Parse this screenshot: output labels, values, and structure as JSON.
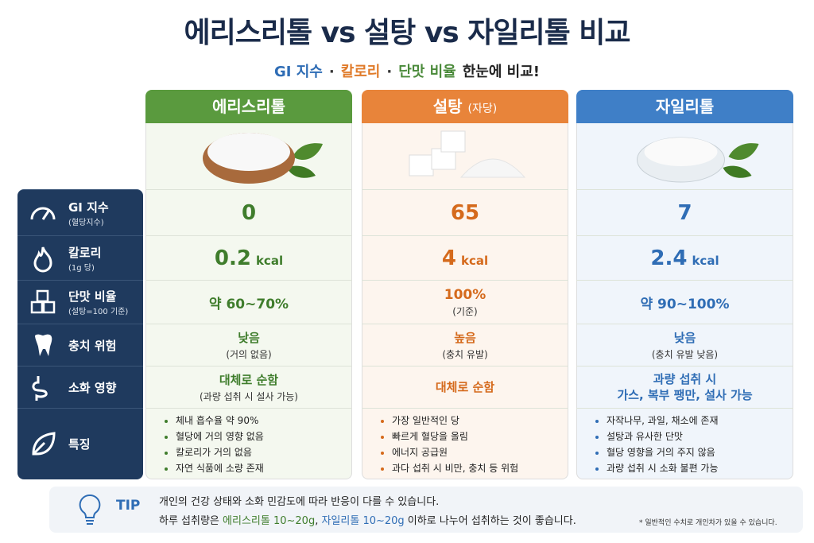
{
  "title": "에리스리톨 vs 설탕 vs 자일리톨 비교",
  "subtitle": [
    {
      "text": "GI 지수",
      "color": "#2f6db5"
    },
    {
      "text": "·",
      "color": "#333"
    },
    {
      "text": "칼로리",
      "color": "#e07b2a"
    },
    {
      "text": "·",
      "color": "#333"
    },
    {
      "text": "단맛 비율",
      "color": "#4a8a3a"
    },
    {
      "text": "한눈에 비교!",
      "color": "#222"
    }
  ],
  "columns": [
    {
      "name": "에리스리톨",
      "color": "#5a9a3e",
      "text": "#3f7d2c",
      "bg": "#f4f8ef"
    },
    {
      "name": "설탕",
      "note": "(자당)",
      "color": "#e8843a",
      "text": "#d56a1c",
      "bg": "#fdf5ee"
    },
    {
      "name": "자일리톨",
      "color": "#3f7fc7",
      "text": "#2f6db5",
      "bg": "#f0f5fb"
    }
  ],
  "rows": [
    {
      "label": "GI 지수",
      "sublabel": "(혈당지수)",
      "style": "big",
      "cells": [
        {
          "value": 0
        },
        {
          "value": 65
        },
        {
          "value": 7
        }
      ]
    },
    {
      "label": "칼로리",
      "sublabel": "(1g 당)",
      "style": "big",
      "cells": [
        {
          "value": 0.2,
          "unit": "kcal"
        },
        {
          "value": 4,
          "unit": "kcal"
        },
        {
          "value": 2.4,
          "unit": "kcal"
        }
      ]
    },
    {
      "label": "단맛 비율",
      "sublabel": "(설탕=100 기준)",
      "style": "mid",
      "cells": [
        {
          "lines": [
            "약 60~70%"
          ]
        },
        {
          "lines": [
            "100%"
          ],
          "sub": "(기준)"
        },
        {
          "lines": [
            "약 90~100%"
          ]
        }
      ]
    },
    {
      "label": "충치 위험",
      "style": "norm",
      "cells": [
        {
          "lines": [
            "낮음"
          ],
          "sub": "(거의 없음)"
        },
        {
          "lines": [
            "높음"
          ],
          "sub": "(충치 유발)"
        },
        {
          "lines": [
            "낮음"
          ],
          "sub": "(충치 유발 낮음)"
        }
      ]
    },
    {
      "label": "소화 영향",
      "style": "norm",
      "cells": [
        {
          "lines": [
            "대체로 순함"
          ],
          "sub": "(과량 섭취 시 설사 가능)"
        },
        {
          "lines": [
            "대체로 순함"
          ]
        },
        {
          "lines": [
            "과량 섭취 시",
            "가스, 복부 팽만, 설사 가능"
          ]
        }
      ]
    },
    {
      "label": "특징",
      "style": "list",
      "cells": [
        {
          "bullets": [
            "체내 흡수율 약 90%",
            "혈당에 거의 영향 없음",
            "칼로리가 거의 없음",
            "자연 식품에 소량 존재"
          ]
        },
        {
          "bullets": [
            "가장 일반적인 당",
            "빠르게 혈당을 올림",
            "에너지 공급원",
            "과다 섭취 시 비만, 충치 등 위험"
          ]
        },
        {
          "bullets": [
            "자작나무, 과일, 채소에 존재",
            "설탕과 유사한 단맛",
            "혈당 영향을 거의 주지 않음",
            "과량 섭취 시 소화 불편 가능"
          ]
        }
      ]
    }
  ],
  "tip": {
    "label": "TIP",
    "line1": "개인의 건강 상태와 소화 민감도에 따라 반응이 다를 수 있습니다.",
    "line2": [
      {
        "text": "하루 섭취량은 ",
        "color": "#222"
      },
      {
        "text": "에리스리톨 10~20g",
        "color": "#3f7d2c"
      },
      {
        "text": ", ",
        "color": "#222"
      },
      {
        "text": "자일리톨 10~20g",
        "color": "#2f6db5"
      },
      {
        "text": " 이하로 나누어 섭취하는 것이 좋습니다.",
        "color": "#222"
      }
    ],
    "footnote": "* 일반적인 수치로 개인차가 있을 수 있습니다."
  }
}
